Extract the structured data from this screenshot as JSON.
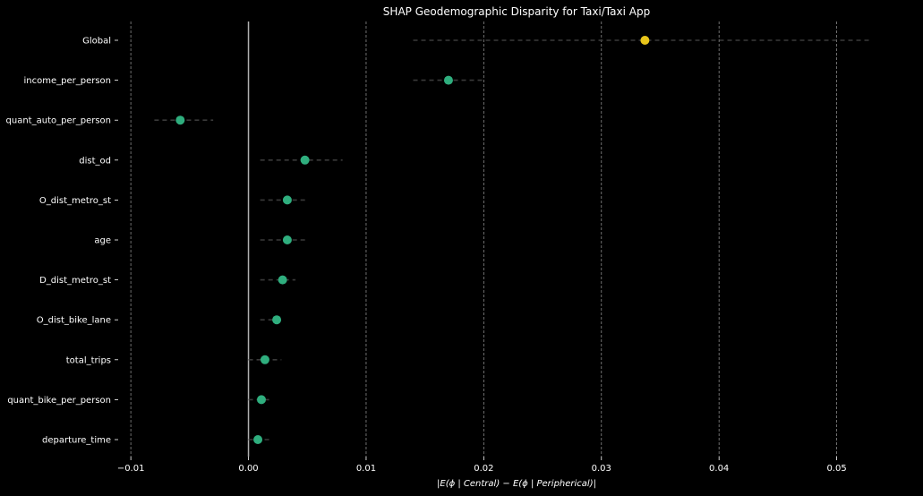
{
  "chart_data": {
    "type": "scatter",
    "title": "SHAP Geodemographic Disparity for Taxi/Taxi App",
    "xlabel": "|E(ϕ | Central) − E(ϕ | Peripherical)|",
    "ylabel": "",
    "xlim": [
      -0.011,
      0.0565
    ],
    "xticks": [
      -0.01,
      0.0,
      0.01,
      0.02,
      0.03,
      0.04,
      0.05
    ],
    "xtick_labels": [
      "−0.01",
      "0.00",
      "0.01",
      "0.02",
      "0.03",
      "0.04",
      "0.05"
    ],
    "grid": "vertical dashed",
    "reference_line": 0.0,
    "categories": [
      "Global",
      "income_per_person",
      "quant_auto_per_person",
      "dist_od",
      "O_dist_metro_st",
      "age",
      "D_dist_metro_st",
      "O_dist_bike_lane",
      "total_trips",
      "quant_bike_per_person",
      "departure_time"
    ],
    "values": [
      0.0337,
      0.017,
      -0.0058,
      0.0048,
      0.0033,
      0.0033,
      0.0029,
      0.0024,
      0.0014,
      0.0011,
      0.0008
    ],
    "ci_low": [
      0.014,
      0.014,
      -0.008,
      0.001,
      0.001,
      0.001,
      0.001,
      0.001,
      0.0,
      0.0,
      0.0
    ],
    "ci_high": [
      0.053,
      0.02,
      -0.003,
      0.008,
      0.005,
      0.005,
      0.004,
      0.003,
      0.0028,
      0.002,
      0.002
    ],
    "colors": {
      "global": "#e8c51a",
      "feature": "#2fae7e",
      "ci": "#3a3a3a",
      "grid": "#8a8a8a",
      "zero_line": "#b0b0b0",
      "background": "#000000",
      "text": "#ffffff"
    }
  }
}
